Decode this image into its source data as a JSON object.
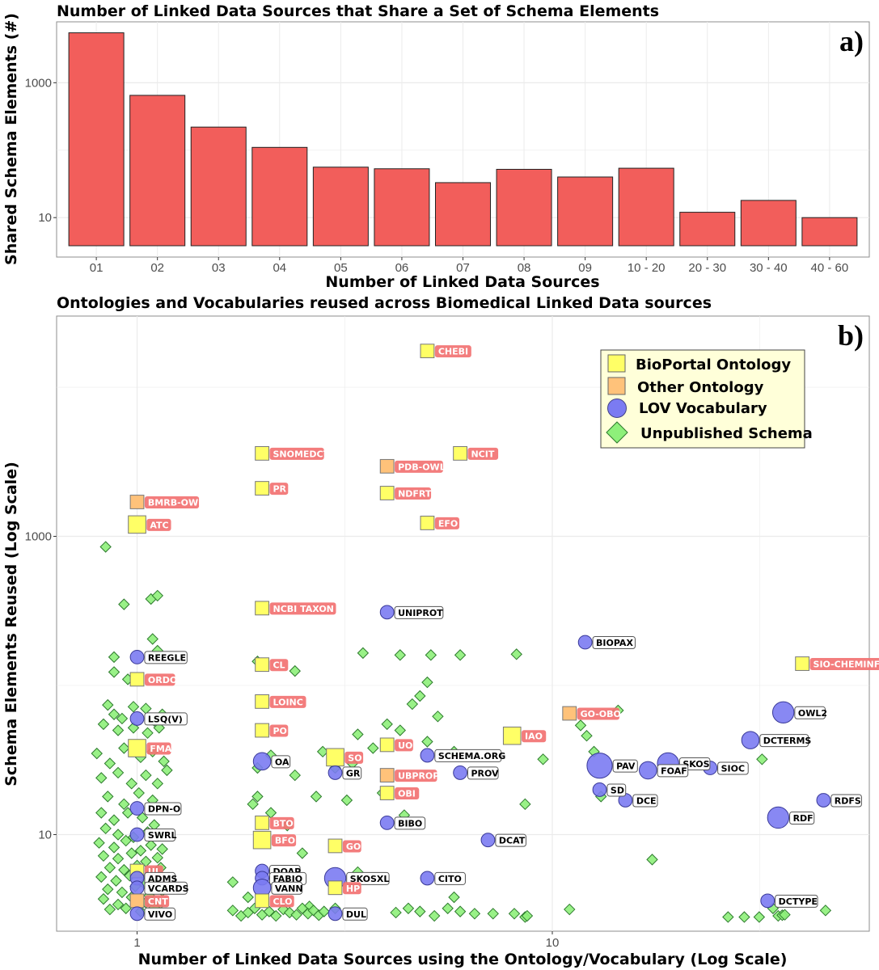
{
  "chart_data": [
    {
      "type": "bar",
      "panel": "a)",
      "title": "Number of Linked Data Sources that Share a Set of Schema Elements",
      "xlabel": "Number of Linked Data Sources",
      "ylabel": "Shared Schema Elements (#)",
      "yscale": "log",
      "ylim": [
        2.6,
        8000
      ],
      "yticks": [
        10,
        1000
      ],
      "categories": [
        "01",
        "02",
        "03",
        "04",
        "05",
        "06",
        "07",
        "08",
        "09",
        "10 - 20",
        "20 - 30",
        "30 - 40",
        "40 - 60"
      ],
      "values": [
        5500,
        650,
        220,
        110,
        56,
        53,
        33,
        52,
        40,
        54,
        12,
        18,
        10
      ],
      "colors": {
        "bar": "#f25e5b",
        "border": "#222222"
      }
    },
    {
      "type": "scatter",
      "panel": "b)",
      "title": "Ontologies and Vocabularies reused across Biomedical Linked Data sources",
      "xlabel": "Number of Linked Data Sources using the Ontology/Vocabulary (Log Scale)",
      "ylabel": "Schema Elements Reused (Log Scale)",
      "xscale": "log",
      "yscale": "log",
      "xlim": [
        0.64,
        58
      ],
      "ylim": [
        2.25,
        30000
      ],
      "xticks": [
        1,
        10
      ],
      "yticks": [
        10,
        1000
      ],
      "legend": {
        "position": "top-right",
        "items": [
          {
            "label": "BioPortal Ontology",
            "shape": "square",
            "fill": "#ffff66"
          },
          {
            "label": "Other Ontology",
            "shape": "square",
            "fill": "#ffc27a"
          },
          {
            "label": "LOV Vocabulary",
            "shape": "circle",
            "fill": "#7b7bf2"
          },
          {
            "label": "Unpublished Schema",
            "shape": "diamond",
            "fill": "#8ef07a"
          }
        ]
      },
      "colors": {
        "bioportal": "#ffff66",
        "other": "#ffc27a",
        "lov": "#7b7bf2",
        "unpublished": "#8ef07a",
        "label_red": "#f27272"
      },
      "labeled_points": [
        {
          "name": "CHEBI",
          "x": 5,
          "y": 17500,
          "cat": "bioportal",
          "size": 1.4
        },
        {
          "name": "SNOMEDCT",
          "x": 2,
          "y": 3600,
          "cat": "bioportal",
          "size": 1.4
        },
        {
          "name": "NCIT",
          "x": 6,
          "y": 3600,
          "cat": "bioportal",
          "size": 1.4
        },
        {
          "name": "PDB-OWL",
          "x": 4,
          "y": 2950,
          "cat": "other",
          "size": 1.4
        },
        {
          "name": "PR",
          "x": 2,
          "y": 2100,
          "cat": "bioportal",
          "size": 1.4
        },
        {
          "name": "NDFRT",
          "x": 4,
          "y": 1950,
          "cat": "bioportal",
          "size": 1.4
        },
        {
          "name": "BMRB-OWL",
          "x": 1,
          "y": 1700,
          "cat": "other",
          "size": 1.4
        },
        {
          "name": "EFO",
          "x": 5,
          "y": 1230,
          "cat": "bioportal",
          "size": 1.4
        },
        {
          "name": "ATC",
          "x": 1,
          "y": 1200,
          "cat": "bioportal",
          "size": 1.8
        },
        {
          "name": "NCBI TAXON",
          "x": 2,
          "y": 330,
          "cat": "bioportal",
          "size": 1.4
        },
        {
          "name": "UNIPROT",
          "x": 4,
          "y": 310,
          "cat": "lov",
          "size": 1.4
        },
        {
          "name": "BIOPAX",
          "x": 12,
          "y": 195,
          "cat": "lov",
          "size": 1.4
        },
        {
          "name": "REEGLE",
          "x": 1,
          "y": 155,
          "cat": "lov",
          "size": 1.4
        },
        {
          "name": "SIO-CHEMINF",
          "x": 40,
          "y": 140,
          "cat": "bioportal",
          "size": 1.4
        },
        {
          "name": "CL",
          "x": 2,
          "y": 138,
          "cat": "bioportal",
          "size": 1.4
        },
        {
          "name": "ORDO",
          "x": 1,
          "y": 110,
          "cat": "bioportal",
          "size": 1.4
        },
        {
          "name": "LOINC",
          "x": 2,
          "y": 78,
          "cat": "bioportal",
          "size": 1.4
        },
        {
          "name": "GO-OBO",
          "x": 11,
          "y": 65,
          "cat": "other",
          "size": 1.4
        },
        {
          "name": "OWL2",
          "x": 36,
          "y": 66,
          "cat": "lov",
          "size": 2.2
        },
        {
          "name": "LSQ(V)",
          "x": 1,
          "y": 60,
          "cat": "lov",
          "size": 1.4
        },
        {
          "name": "PO",
          "x": 2,
          "y": 50,
          "cat": "bioportal",
          "size": 1.4
        },
        {
          "name": "IAO",
          "x": 8,
          "y": 46,
          "cat": "bioportal",
          "size": 1.8
        },
        {
          "name": "DCTERMS",
          "x": 30,
          "y": 43,
          "cat": "lov",
          "size": 1.8
        },
        {
          "name": "UO",
          "x": 4,
          "y": 40,
          "cat": "bioportal",
          "size": 1.4
        },
        {
          "name": "FMA",
          "x": 1,
          "y": 38,
          "cat": "bioportal",
          "size": 1.8
        },
        {
          "name": "SCHEMA.ORG",
          "x": 5,
          "y": 34,
          "cat": "lov",
          "size": 1.4
        },
        {
          "name": "SO",
          "x": 3,
          "y": 33,
          "cat": "bioportal",
          "size": 1.8
        },
        {
          "name": "OA",
          "x": 2,
          "y": 31,
          "cat": "lov",
          "size": 1.8
        },
        {
          "name": "PAV",
          "x": 13,
          "y": 29,
          "cat": "lov",
          "size": 2.6
        },
        {
          "name": "SKOS",
          "x": 19,
          "y": 30,
          "cat": "lov",
          "size": 2.2
        },
        {
          "name": "FOAF",
          "x": 17,
          "y": 27,
          "cat": "lov",
          "size": 1.8
        },
        {
          "name": "SIOC",
          "x": 24,
          "y": 28,
          "cat": "lov",
          "size": 1.4
        },
        {
          "name": "PROV",
          "x": 6,
          "y": 26,
          "cat": "lov",
          "size": 1.4
        },
        {
          "name": "GR",
          "x": 3,
          "y": 26,
          "cat": "lov",
          "size": 1.4
        },
        {
          "name": "UBPROP",
          "x": 4,
          "y": 25,
          "cat": "other",
          "size": 1.4
        },
        {
          "name": "SD",
          "x": 13,
          "y": 20,
          "cat": "lov",
          "size": 1.4
        },
        {
          "name": "OBI",
          "x": 4,
          "y": 19,
          "cat": "bioportal",
          "size": 1.4
        },
        {
          "name": "DCE",
          "x": 15,
          "y": 17,
          "cat": "lov",
          "size": 1.4
        },
        {
          "name": "RDFS",
          "x": 45,
          "y": 17,
          "cat": "lov",
          "size": 1.4
        },
        {
          "name": "DPN-O",
          "x": 1,
          "y": 15,
          "cat": "lov",
          "size": 1.4
        },
        {
          "name": "RDF",
          "x": 35,
          "y": 13,
          "cat": "lov",
          "size": 2.2
        },
        {
          "name": "BTO",
          "x": 2,
          "y": 12,
          "cat": "bioportal",
          "size": 1.4
        },
        {
          "name": "BIBO",
          "x": 4,
          "y": 12,
          "cat": "lov",
          "size": 1.4
        },
        {
          "name": "SWRL",
          "x": 1,
          "y": 10,
          "cat": "lov",
          "size": 1.4
        },
        {
          "name": "DCAT",
          "x": 7,
          "y": 9.2,
          "cat": "lov",
          "size": 1.4
        },
        {
          "name": "BFO",
          "x": 2,
          "y": 9.2,
          "cat": "bioportal",
          "size": 1.8
        },
        {
          "name": "GO",
          "x": 3,
          "y": 8.4,
          "cat": "bioportal",
          "size": 1.4
        },
        {
          "name": "DOAP",
          "x": 2,
          "y": 5.7,
          "cat": "lov",
          "size": 1.4
        },
        {
          "name": "UI",
          "x": 1,
          "y": 5.7,
          "cat": "bioportal",
          "size": 1.4
        },
        {
          "name": "ADMS",
          "x": 1,
          "y": 5.1,
          "cat": "lov",
          "size": 1.4
        },
        {
          "name": "FABIO",
          "x": 2,
          "y": 5.1,
          "cat": "lov",
          "size": 1.4
        },
        {
          "name": "SKOSXL",
          "x": 3,
          "y": 5.1,
          "cat": "lov",
          "size": 2.2
        },
        {
          "name": "CITO",
          "x": 5,
          "y": 5.1,
          "cat": "lov",
          "size": 1.4
        },
        {
          "name": "VCARDS",
          "x": 1,
          "y": 4.4,
          "cat": "lov",
          "size": 1.4
        },
        {
          "name": "VANN",
          "x": 2,
          "y": 4.4,
          "cat": "lov",
          "size": 1.8
        },
        {
          "name": "HP",
          "x": 3,
          "y": 4.4,
          "cat": "bioportal",
          "size": 1.4
        },
        {
          "name": "CNT",
          "x": 1,
          "y": 3.6,
          "cat": "other",
          "size": 1.4
        },
        {
          "name": "CLO",
          "x": 2,
          "y": 3.6,
          "cat": "bioportal",
          "size": 1.4
        },
        {
          "name": "DCTYPE",
          "x": 33,
          "y": 3.6,
          "cat": "lov",
          "size": 1.4
        },
        {
          "name": "VIVO",
          "x": 1,
          "y": 2.95,
          "cat": "lov",
          "size": 1.4
        },
        {
          "name": "DUL",
          "x": 3,
          "y": 2.95,
          "cat": "lov",
          "size": 1.4
        }
      ],
      "unpublished_points": [
        [
          0.84,
          850
        ],
        [
          0.93,
          350
        ],
        [
          1.08,
          380
        ],
        [
          1.12,
          400
        ],
        [
          0.88,
          155
        ],
        [
          0.88,
          123
        ],
        [
          1.09,
          205
        ],
        [
          1.12,
          171
        ],
        [
          0.95,
          110
        ],
        [
          0.85,
          74
        ],
        [
          0.88,
          64
        ],
        [
          0.92,
          60
        ],
        [
          0.98,
          72
        ],
        [
          1.05,
          70
        ],
        [
          1.1,
          58
        ],
        [
          1.15,
          64
        ],
        [
          0.83,
          55
        ],
        [
          0.9,
          50
        ],
        [
          0.98,
          52
        ],
        [
          1.06,
          48
        ],
        [
          1.13,
          52
        ],
        [
          0.8,
          35
        ],
        [
          0.86,
          30
        ],
        [
          0.93,
          38
        ],
        [
          1.02,
          33
        ],
        [
          1.09,
          36
        ],
        [
          1.16,
          31
        ],
        [
          0.82,
          24
        ],
        [
          0.9,
          26
        ],
        [
          0.97,
          22
        ],
        [
          1.05,
          25
        ],
        [
          1.12,
          22
        ],
        [
          1.18,
          27
        ],
        [
          0.85,
          18
        ],
        [
          0.93,
          16
        ],
        [
          1.01,
          19
        ],
        [
          1.09,
          17
        ],
        [
          1.16,
          15
        ],
        [
          0.82,
          14
        ],
        [
          0.88,
          12.5
        ],
        [
          0.95,
          14
        ],
        [
          1.03,
          13
        ],
        [
          1.1,
          11.6
        ],
        [
          0.84,
          11
        ],
        [
          0.9,
          10
        ],
        [
          0.98,
          9.6
        ],
        [
          1.06,
          10.4
        ],
        [
          1.13,
          9.8
        ],
        [
          0.81,
          8.8
        ],
        [
          0.88,
          8.2
        ],
        [
          0.94,
          9.1
        ],
        [
          1.02,
          7.8
        ],
        [
          1.08,
          8.5
        ],
        [
          1.15,
          8.0
        ],
        [
          0.83,
          7.2
        ],
        [
          0.9,
          6.9
        ],
        [
          0.97,
          7.5
        ],
        [
          1.05,
          6.6
        ],
        [
          1.12,
          7.0
        ],
        [
          0.86,
          6.0
        ],
        [
          0.93,
          5.8
        ],
        [
          1.0,
          6.2
        ],
        [
          1.08,
          5.5
        ],
        [
          1.14,
          6.0
        ],
        [
          0.82,
          5.2
        ],
        [
          0.89,
          4.9
        ],
        [
          0.96,
          5.3
        ],
        [
          1.04,
          4.7
        ],
        [
          1.1,
          5.0
        ],
        [
          0.85,
          4.3
        ],
        [
          0.92,
          4.1
        ],
        [
          0.99,
          4.5
        ],
        [
          1.07,
          3.9
        ],
        [
          1.15,
          4.2
        ],
        [
          0.83,
          3.7
        ],
        [
          0.9,
          3.4
        ],
        [
          0.97,
          3.8
        ],
        [
          1.05,
          3.5
        ],
        [
          1.12,
          3.3
        ],
        [
          0.86,
          3.15
        ],
        [
          0.94,
          3.2
        ],
        [
          1.02,
          3.05
        ],
        [
          1.1,
          3.25
        ],
        [
          1.95,
          145
        ],
        [
          2.4,
          125
        ],
        [
          3.5,
          165
        ],
        [
          4.3,
          160
        ],
        [
          6.0,
          160
        ],
        [
          8.2,
          162
        ],
        [
          5.1,
          160
        ],
        [
          5.0,
          105
        ],
        [
          4.6,
          75
        ],
        [
          4.8,
          85
        ],
        [
          5.3,
          62
        ],
        [
          3.4,
          47
        ],
        [
          4.0,
          55
        ],
        [
          3.7,
          38
        ],
        [
          5.0,
          42
        ],
        [
          4.3,
          50
        ],
        [
          2.8,
          36
        ],
        [
          1.95,
          28
        ],
        [
          2.1,
          34
        ],
        [
          2.4,
          25
        ],
        [
          2.7,
          18
        ],
        [
          3.3,
          30
        ],
        [
          1.95,
          18
        ],
        [
          1.9,
          16
        ],
        [
          2.1,
          14
        ],
        [
          2.3,
          11.5
        ],
        [
          3.0,
          28
        ],
        [
          2.5,
          7.5
        ],
        [
          1.7,
          4.8
        ],
        [
          1.85,
          3.8
        ],
        [
          2.6,
          3.3
        ],
        [
          3.4,
          5.6
        ],
        [
          3.2,
          17
        ],
        [
          4.4,
          13.5
        ],
        [
          3.9,
          19
        ],
        [
          5.8,
          36
        ],
        [
          5.8,
          3.8
        ],
        [
          8.6,
          16
        ],
        [
          9.5,
          32
        ],
        [
          13.1,
          18
        ],
        [
          12.6,
          36
        ],
        [
          12.1,
          46
        ],
        [
          11.7,
          54
        ],
        [
          14.4,
          68
        ],
        [
          17.4,
          6.8
        ],
        [
          32.0,
          32
        ],
        [
          45.5,
          3.1
        ],
        [
          11.0,
          3.15
        ],
        [
          3.0,
          3.2
        ],
        [
          1.7,
          3.1
        ],
        [
          1.78,
          2.85
        ],
        [
          1.85,
          3.0
        ],
        [
          1.92,
          3.2
        ],
        [
          2.0,
          2.9
        ],
        [
          2.08,
          3.05
        ],
        [
          2.16,
          2.85
        ],
        [
          2.25,
          3.15
        ],
        [
          2.33,
          3.0
        ],
        [
          2.42,
          2.9
        ],
        [
          2.5,
          3.2
        ],
        [
          2.58,
          2.95
        ],
        [
          2.66,
          3.1
        ],
        [
          2.74,
          2.88
        ],
        [
          2.82,
          3.05
        ],
        [
          4.2,
          3.0
        ],
        [
          4.5,
          3.2
        ],
        [
          4.8,
          3.05
        ],
        [
          5.2,
          2.85
        ],
        [
          5.6,
          3.2
        ],
        [
          6.0,
          3.05
        ],
        [
          6.5,
          2.95
        ],
        [
          7.2,
          2.95
        ],
        [
          8.1,
          2.95
        ],
        [
          8.6,
          2.8
        ],
        [
          8.7,
          2.85
        ],
        [
          29.0,
          2.8
        ],
        [
          26.5,
          2.8
        ],
        [
          31.5,
          2.8
        ],
        [
          34.0,
          3.2
        ],
        [
          35.0,
          2.85
        ],
        [
          35.8,
          2.88
        ],
        [
          36.3,
          2.9
        ]
      ]
    }
  ]
}
